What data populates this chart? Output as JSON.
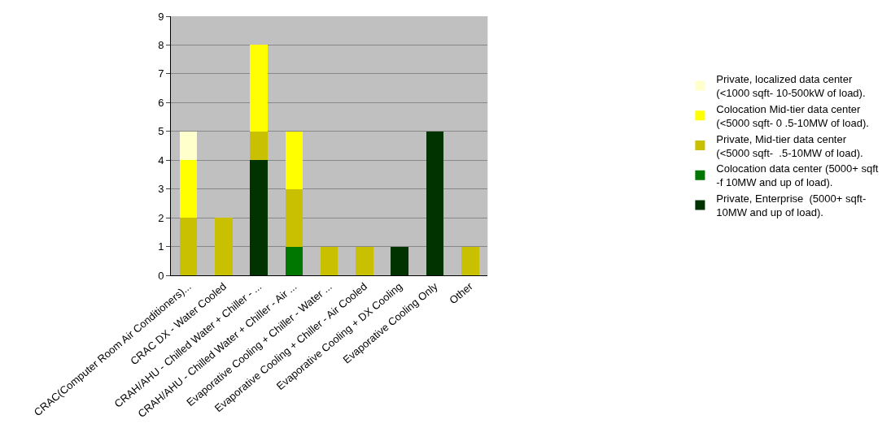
{
  "chart_data": {
    "type": "bar",
    "stacked": true,
    "categories": [
      "CRAC(Computer Room Air Conditioners)...",
      "CRAC DX - Water Cooled",
      "CRAH/AHU - Chilled Water + Chiller - ...",
      "CRAH/AHU - Chilled Water + Chiller - Air ...",
      "Evaporative Cooling + Chiller - Water ...",
      "Evaporative Cooling + Chiller - Air Cooled",
      "Evaporative Cooling + DX Cooling",
      "Evaporative Cooling Only",
      "Other"
    ],
    "series": [
      {
        "name": "Private, Enterprise  (5000+ sqft- 10MW and up of load).",
        "color": "#003300",
        "values": [
          0,
          0,
          4,
          0,
          0,
          0,
          1,
          5,
          0
        ]
      },
      {
        "name": "Colocation data center (5000+ sqft -f 10MW and up of load).",
        "color": "#007700",
        "values": [
          0,
          0,
          0,
          1,
          0,
          0,
          0,
          0,
          0
        ]
      },
      {
        "name": "Private, Mid-tier data center (<5000 sqft-  .5-10MW of load).",
        "color": "#c8c000",
        "values": [
          2,
          2,
          1,
          2,
          1,
          1,
          0,
          0,
          1
        ]
      },
      {
        "name": "Colocation Mid-tier data center (<5000 sqft- 0 .5-10MW of load).",
        "color": "#ffff00",
        "values": [
          2,
          0,
          3,
          2,
          0,
          0,
          0,
          0,
          0
        ]
      },
      {
        "name": "Private, localized data center (<1000 sqft- 10-500kW of load).",
        "color": "#ffffcc",
        "values": [
          1,
          0,
          0,
          0,
          0,
          0,
          0,
          0,
          0
        ]
      }
    ],
    "ylim": [
      0,
      9
    ],
    "yticks": [
      0,
      1,
      2,
      3,
      4,
      5,
      6,
      7,
      8,
      9
    ],
    "grid": "y",
    "legend": "right"
  }
}
